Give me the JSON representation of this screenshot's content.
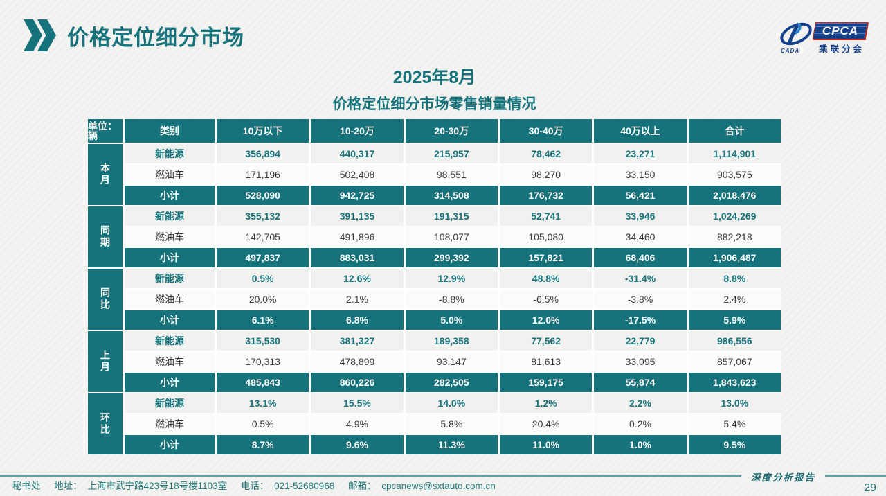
{
  "page": {
    "title": "价格定位细分市场",
    "subtitle_line1": "2025年8月",
    "subtitle_line2": "价格定位细分市场零售销量情况",
    "report_tag": "深度分析报告",
    "page_number": "29"
  },
  "footer": {
    "secretariat": "秘书处",
    "address_label": "地址：",
    "address": "上海市武宁路423号18号楼1103室",
    "phone_label": "电话：",
    "phone": "021-52680968",
    "email_label": "邮箱：",
    "email": "cpcanews@sxtauto.com.cn"
  },
  "logo": {
    "cpca": "CPCA",
    "org": "乘联分会",
    "cada": "CADA"
  },
  "colors": {
    "teal": "#16737b",
    "logo_blue": "#14418c",
    "logo_red": "#c2281e"
  },
  "table": {
    "unit_label": "单位：辆",
    "columns": [
      "类别",
      "10万以下",
      "10-20万",
      "20-30万",
      "30-40万",
      "40万以上",
      "合计"
    ],
    "groups": [
      {
        "label": "本月",
        "rows": [
          {
            "type": "nev",
            "label": "新能源",
            "values": [
              "356,894",
              "440,317",
              "215,957",
              "78,462",
              "23,271",
              "1,114,901"
            ]
          },
          {
            "type": "fuel",
            "label": "燃油车",
            "values": [
              "171,196",
              "502,408",
              "98,551",
              "98,270",
              "33,150",
              "903,575"
            ]
          },
          {
            "type": "sub",
            "label": "小计",
            "values": [
              "528,090",
              "942,725",
              "314,508",
              "176,732",
              "56,421",
              "2,018,476"
            ]
          }
        ]
      },
      {
        "label": "同期",
        "rows": [
          {
            "type": "nev",
            "label": "新能源",
            "values": [
              "355,132",
              "391,135",
              "191,315",
              "52,741",
              "33,946",
              "1,024,269"
            ]
          },
          {
            "type": "fuel",
            "label": "燃油车",
            "values": [
              "142,705",
              "491,896",
              "108,077",
              "105,080",
              "34,460",
              "882,218"
            ]
          },
          {
            "type": "sub",
            "label": "小计",
            "values": [
              "497,837",
              "883,031",
              "299,392",
              "157,821",
              "68,406",
              "1,906,487"
            ]
          }
        ]
      },
      {
        "label": "同比",
        "rows": [
          {
            "type": "nev",
            "label": "新能源",
            "values": [
              "0.5%",
              "12.6%",
              "12.9%",
              "48.8%",
              "-31.4%",
              "8.8%"
            ]
          },
          {
            "type": "fuel",
            "label": "燃油车",
            "values": [
              "20.0%",
              "2.1%",
              "-8.8%",
              "-6.5%",
              "-3.8%",
              "2.4%"
            ]
          },
          {
            "type": "sub",
            "label": "小计",
            "values": [
              "6.1%",
              "6.8%",
              "5.0%",
              "12.0%",
              "-17.5%",
              "5.9%"
            ]
          }
        ]
      },
      {
        "label": "上月",
        "rows": [
          {
            "type": "nev",
            "label": "新能源",
            "values": [
              "315,530",
              "381,327",
              "189,358",
              "77,562",
              "22,779",
              "986,556"
            ]
          },
          {
            "type": "fuel",
            "label": "燃油车",
            "values": [
              "170,313",
              "478,899",
              "93,147",
              "81,613",
              "33,095",
              "857,067"
            ]
          },
          {
            "type": "sub",
            "label": "小计",
            "values": [
              "485,843",
              "860,226",
              "282,505",
              "159,175",
              "55,874",
              "1,843,623"
            ]
          }
        ]
      },
      {
        "label": "环比",
        "rows": [
          {
            "type": "nev",
            "label": "新能源",
            "values": [
              "13.1%",
              "15.5%",
              "14.0%",
              "1.2%",
              "2.2%",
              "13.0%"
            ]
          },
          {
            "type": "fuel",
            "label": "燃油车",
            "values": [
              "0.5%",
              "4.9%",
              "5.8%",
              "20.4%",
              "0.2%",
              "5.4%"
            ]
          },
          {
            "type": "sub",
            "label": "小计",
            "values": [
              "8.7%",
              "9.6%",
              "11.3%",
              "11.0%",
              "1.0%",
              "9.5%"
            ]
          }
        ]
      }
    ]
  }
}
